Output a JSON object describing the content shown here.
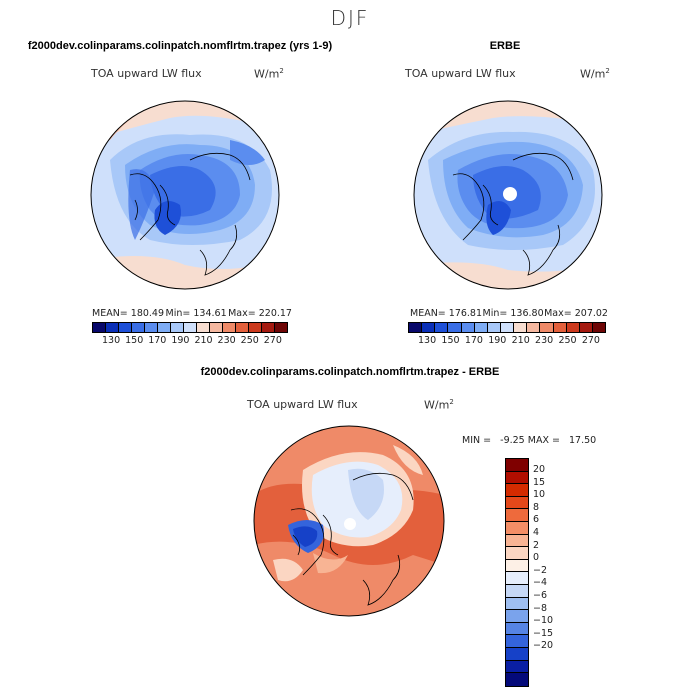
{
  "season": "DJF",
  "panels": {
    "model": {
      "title": "f2000dev.colinparams.colinpatch.nomflrtm.trapez (yrs 1-9)",
      "variable": "TOA upward LW flux",
      "units": "W/m",
      "units_exp": "2",
      "stats": {
        "mean": "MEAN= 180.49",
        "min": "Min= 134.61",
        "max": "Max= 220.17"
      }
    },
    "obs": {
      "title": "ERBE",
      "variable": "TOA upward LW flux",
      "units": "W/m",
      "units_exp": "2",
      "stats": {
        "mean": "MEAN= 176.81",
        "min": "Min= 136.80",
        "max": "Max= 207.02"
      }
    },
    "diff": {
      "title": "f2000dev.colinparams.colinpatch.nomflrtm.trapez - ERBE",
      "variable": "TOA upward LW flux",
      "units": "W/m",
      "units_exp": "2",
      "minmax": "MIN =   -9.25 MAX =   17.50"
    }
  },
  "colorbar_abs": {
    "colors": [
      "#08086b",
      "#0a2fb8",
      "#1e50d8",
      "#3a6ee6",
      "#5b8def",
      "#7fadf5",
      "#a8c8f8",
      "#cfe0fb",
      "#f7ddd0",
      "#f5b8a0",
      "#ef8a68",
      "#e3603c",
      "#cc3a1e",
      "#a51a10",
      "#6e0606"
    ],
    "labels": [
      "130",
      "150",
      "170",
      "190",
      "210",
      "230",
      "250",
      "270"
    ]
  },
  "colorbar_diff": {
    "colors": [
      "#7f0000",
      "#b10e00",
      "#d42b00",
      "#e4481a",
      "#ee6a3c",
      "#f48e66",
      "#f8b494",
      "#fbd6c2",
      "#fdf0e6",
      "#e6eefc",
      "#c6d8f6",
      "#9fbff1",
      "#7aa3ec",
      "#5684e4",
      "#3464dc",
      "#1641c8",
      "#0a1fa3",
      "#040a7a"
    ],
    "labels": [
      "20",
      "15",
      "10",
      "8",
      "6",
      "4",
      "2",
      "0",
      "−2",
      "−4",
      "−6",
      "−8",
      "−10",
      "−15",
      "−20"
    ]
  },
  "map_colors": {
    "deep_blue": "#1e50d8",
    "mid_blue": "#3a6ee6",
    "light_blue": "#7fadf5",
    "pale_blue": "#cfe0fb",
    "pale_orange": "#f7ddd0",
    "salmon": "#f5b8a0",
    "orange": "#ef8a68",
    "red_orange": "#e3603c"
  }
}
